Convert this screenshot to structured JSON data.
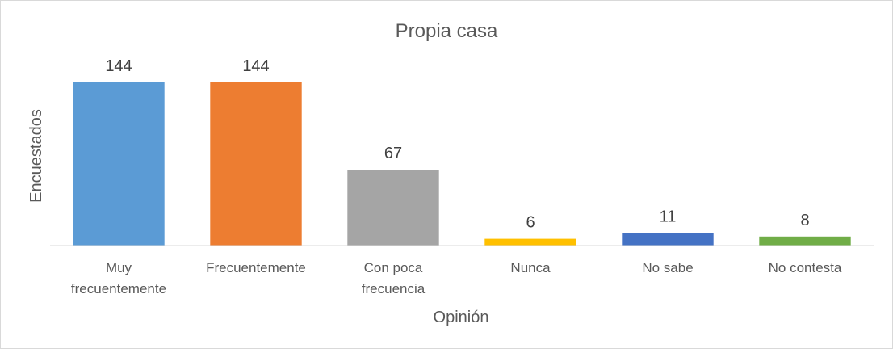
{
  "chart_data": {
    "type": "bar",
    "title": "Propia casa",
    "xlabel": "Opinión",
    "ylabel": "Encuestados",
    "categories": [
      [
        "Muy",
        "frecuentemente"
      ],
      [
        "Frecuentemente"
      ],
      [
        "Con poca",
        "frecuencia"
      ],
      [
        "Nunca"
      ],
      [
        "No sabe"
      ],
      [
        "No contesta"
      ]
    ],
    "values": [
      144,
      144,
      67,
      6,
      11,
      8
    ],
    "colors": [
      "#5b9bd5",
      "#ed7d31",
      "#a5a5a5",
      "#ffc000",
      "#4472c4",
      "#70ad47"
    ],
    "ylim": [
      0,
      144
    ],
    "grid": false,
    "legend": "none"
  }
}
